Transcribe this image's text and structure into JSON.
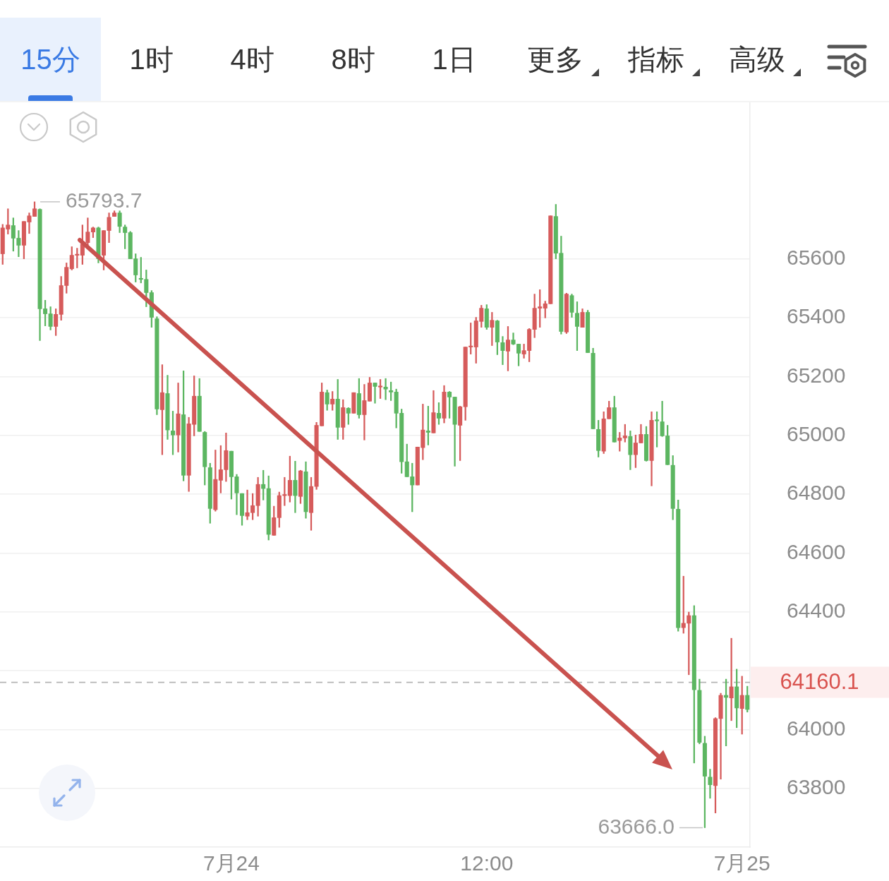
{
  "chart_data": {
    "type": "candlestick",
    "categories": [
      null,
      null,
      null,
      null,
      null,
      null,
      null,
      null,
      null,
      null,
      null,
      null,
      null,
      null,
      null,
      null,
      null,
      null,
      null,
      null,
      null,
      null,
      null,
      null,
      null,
      null,
      null,
      null,
      null,
      null,
      null,
      null,
      null,
      null,
      null,
      null,
      null,
      null,
      null,
      null,
      null,
      null,
      null,
      "7月24",
      null,
      null,
      null,
      null,
      null,
      null,
      null,
      null,
      null,
      null,
      null,
      null,
      null,
      null,
      null,
      null,
      null,
      null,
      null,
      null,
      null,
      null,
      null,
      null,
      null,
      null,
      null,
      null,
      null,
      null,
      null,
      null,
      null,
      null,
      null,
      null,
      null,
      null,
      null,
      null,
      null,
      null,
      null,
      null,
      null,
      null,
      null,
      "12:00",
      null,
      null,
      null,
      null,
      null,
      null,
      null,
      null,
      null,
      null,
      null,
      null,
      null,
      null,
      null,
      null,
      null,
      null,
      null,
      null,
      null,
      null,
      null,
      null,
      null,
      null,
      null,
      null,
      null,
      null,
      null,
      null,
      null,
      null,
      null,
      null,
      null,
      null,
      null,
      null,
      null,
      null,
      null,
      null,
      null,
      null,
      null,
      "7月25",
      null
    ],
    "ohlc": [
      [
        65617,
        65717,
        65581,
        65705
      ],
      [
        65701,
        65770,
        65684,
        65715
      ],
      [
        65713,
        65739,
        65626,
        65670
      ],
      [
        65670,
        65696,
        65607,
        65646
      ],
      [
        65646,
        65727,
        65600,
        65727
      ],
      [
        65725,
        65756,
        65686,
        65746
      ],
      [
        65744,
        65793.7,
        65744,
        65770
      ],
      [
        65768,
        65770,
        65322,
        65430
      ],
      [
        65430,
        65459,
        65372,
        65413
      ],
      [
        65413,
        65437,
        65358,
        65370
      ],
      [
        65370,
        65430,
        65339,
        65411
      ],
      [
        65411,
        65540,
        65391,
        65509
      ],
      [
        65509,
        65586,
        65483,
        65571
      ],
      [
        65566,
        65641,
        65562,
        65612
      ],
      [
        65612,
        65636,
        65569,
        65614
      ],
      [
        65612,
        65715,
        65581,
        65650
      ],
      [
        65655,
        65739,
        65641,
        65691
      ],
      [
        65691,
        65708,
        65672,
        65705
      ],
      [
        65705,
        65708,
        65586,
        65600
      ],
      [
        65612,
        65696,
        65562,
        65696
      ],
      [
        65696,
        65756,
        65655,
        65741
      ],
      [
        65744,
        65763,
        65744,
        65756
      ],
      [
        65756,
        65763,
        65689,
        65710
      ],
      [
        65708,
        65715,
        65634,
        65689
      ],
      [
        65689,
        65693,
        65600,
        65600
      ],
      [
        65600,
        65617,
        65521,
        65545
      ],
      [
        65533,
        65605,
        65518,
        65530
      ],
      [
        65530,
        65562,
        65437,
        65485
      ],
      [
        65485,
        65492,
        65367,
        65401
      ],
      [
        65396,
        65403,
        65070,
        65089
      ],
      [
        65087,
        65240,
        64934,
        65145
      ],
      [
        65142,
        65204,
        64986,
        65018
      ],
      [
        65015,
        65082,
        64934,
        65001
      ],
      [
        65001,
        65178,
        64943,
        65073
      ],
      [
        65070,
        65219,
        64845,
        64864
      ],
      [
        64864,
        65061,
        64809,
        65039
      ],
      [
        65037,
        65202,
        64998,
        65133
      ],
      [
        65133,
        65193,
        65013,
        65013
      ],
      [
        65010,
        65013,
        64831,
        64893
      ],
      [
        64890,
        64905,
        64701,
        64751
      ],
      [
        64747,
        64950,
        64742,
        64850
      ],
      [
        64847,
        64965,
        64804,
        64883
      ],
      [
        64883,
        65008,
        64843,
        64948
      ],
      [
        64946,
        64946,
        64783,
        64859
      ],
      [
        64859,
        64867,
        64730,
        64804
      ],
      [
        64802,
        64802,
        64694,
        64727
      ],
      [
        64725,
        64814,
        64713,
        64737
      ],
      [
        64737,
        64802,
        64713,
        64761
      ],
      [
        64761,
        64857,
        64725,
        64833
      ],
      [
        64833,
        64881,
        64780,
        64819
      ],
      [
        64819,
        64862,
        64644,
        64663
      ],
      [
        64660,
        64759,
        64660,
        64720
      ],
      [
        64720,
        64807,
        64687,
        64795
      ],
      [
        64795,
        64857,
        64761,
        64797
      ],
      [
        64795,
        64929,
        64773,
        64847
      ],
      [
        64847,
        64912,
        64737,
        64795
      ],
      [
        64792,
        64881,
        64768,
        64879
      ],
      [
        64876,
        64910,
        64718,
        64740
      ],
      [
        64737,
        64857,
        64677,
        64826
      ],
      [
        64826,
        65044,
        64816,
        65034
      ],
      [
        65032,
        65178,
        65032,
        65147
      ],
      [
        65145,
        65154,
        65085,
        65106
      ],
      [
        65106,
        65149,
        65085,
        65123
      ],
      [
        65123,
        65190,
        64986,
        65027
      ],
      [
        65027,
        65121,
        64986,
        65094
      ],
      [
        65092,
        65094,
        65037,
        65075
      ],
      [
        65075,
        65145,
        65075,
        65145
      ],
      [
        65142,
        65193,
        65058,
        65070
      ],
      [
        65070,
        65173,
        64984,
        65118
      ],
      [
        65116,
        65197,
        65116,
        65178
      ],
      [
        65178,
        65178,
        65109,
        65166
      ],
      [
        65164,
        65190,
        65125,
        65166
      ],
      [
        65164,
        65193,
        65121,
        65157
      ],
      [
        65152,
        65181,
        65118,
        65147
      ],
      [
        65147,
        65157,
        65025,
        65075
      ],
      [
        65075,
        65089,
        64871,
        64910
      ],
      [
        64910,
        64970,
        64859,
        64859
      ],
      [
        64859,
        64905,
        64740,
        64831
      ],
      [
        64831,
        64960,
        64831,
        64960
      ],
      [
        64958,
        65106,
        64917,
        65018
      ],
      [
        65015,
        65099,
        64967,
        65010
      ],
      [
        65008,
        65152,
        65008,
        65077
      ],
      [
        65075,
        65111,
        65037,
        65058
      ],
      [
        65058,
        65169,
        65042,
        65147
      ],
      [
        65147,
        65149,
        65058,
        65130
      ],
      [
        65130,
        65130,
        64895,
        65037
      ],
      [
        65034,
        65099,
        64914,
        65097
      ],
      [
        65097,
        65300,
        65051,
        65300
      ],
      [
        65300,
        65382,
        65276,
        65303
      ],
      [
        65300,
        65401,
        65245,
        65389
      ],
      [
        65387,
        65442,
        65367,
        65432
      ],
      [
        65430,
        65444,
        65360,
        65367
      ],
      [
        65367,
        65418,
        65305,
        65391
      ],
      [
        65389,
        65391,
        65274,
        65317
      ],
      [
        65315,
        65336,
        65240,
        65288
      ],
      [
        65286,
        65370,
        65219,
        65324
      ],
      [
        65324,
        65348,
        65308,
        65310
      ],
      [
        65310,
        65310,
        65236,
        65279
      ],
      [
        65276,
        65310,
        65262,
        65288
      ],
      [
        65288,
        65363,
        65250,
        65360
      ],
      [
        65360,
        65480,
        65332,
        65432
      ],
      [
        65432,
        65495,
        65367,
        65437
      ],
      [
        65432,
        65456,
        65399,
        65447
      ],
      [
        65447,
        65746,
        65447,
        65746
      ],
      [
        65744,
        65785,
        65600,
        65619
      ],
      [
        65619,
        65677,
        65344,
        65353
      ],
      [
        65351,
        65483,
        65346,
        65480
      ],
      [
        65475,
        65480,
        65401,
        65418
      ],
      [
        65415,
        65454,
        65288,
        65370
      ],
      [
        65367,
        65430,
        65367,
        65418
      ],
      [
        65418,
        65425,
        65281,
        65281
      ],
      [
        65279,
        65296,
        65022,
        65022
      ],
      [
        65020,
        65051,
        64926,
        64948
      ],
      [
        64946,
        65080,
        64938,
        65056
      ],
      [
        65056,
        65116,
        65056,
        65094
      ],
      [
        65094,
        65133,
        64977,
        64977
      ],
      [
        64982,
        65010,
        64946,
        64991
      ],
      [
        64991,
        65037,
        64977,
        64998
      ],
      [
        64996,
        65015,
        64883,
        64934
      ],
      [
        64934,
        65001,
        64890,
        64974
      ],
      [
        64974,
        65037,
        64974,
        65003
      ],
      [
        65003,
        65030,
        64912,
        64914
      ],
      [
        64914,
        65080,
        64828,
        65051
      ],
      [
        65051,
        65080,
        64960,
        65049
      ],
      [
        65046,
        65116,
        64996,
        64998
      ],
      [
        64998,
        65034,
        64900,
        64900
      ],
      [
        64898,
        64931,
        64713,
        64751
      ],
      [
        64749,
        64780,
        64334,
        64346
      ],
      [
        64346,
        64521,
        64327,
        64361
      ],
      [
        64361,
        64399,
        64186,
        64387
      ],
      [
        64387,
        64421,
        63886,
        64135
      ],
      [
        64133,
        64171,
        63951,
        63956
      ],
      [
        63953,
        63977,
        63666,
        63841
      ],
      [
        63838,
        63865,
        63766,
        63812
      ],
      [
        63809,
        64040,
        63716,
        64037
      ],
      [
        64037,
        64123,
        63831,
        64116
      ],
      [
        64116,
        64171,
        63944,
        64109
      ],
      [
        64107,
        64310,
        64030,
        64145
      ],
      [
        64145,
        64205,
        64006,
        64073
      ],
      [
        64071,
        64181,
        63984,
        64116
      ],
      [
        64116,
        64147,
        64059,
        64068
      ]
    ],
    "colors": [
      "#d65b5b",
      "#d65b5b",
      "#5cb661",
      "#5cb661",
      "#d65b5b",
      "#d65b5b",
      "#d65b5b",
      "#5cb661",
      "#5cb661",
      "#5cb661",
      "#d65b5b",
      "#d65b5b",
      "#d65b5b",
      "#d65b5b",
      "#d65b5b",
      "#d65b5b",
      "#d65b5b",
      "#d65b5b",
      "#5cb661",
      "#d65b5b",
      "#d65b5b",
      "#d65b5b",
      "#5cb661",
      "#5cb661",
      "#5cb661",
      "#5cb661",
      "#5cb661",
      "#5cb661",
      "#5cb661",
      "#5cb661",
      "#d65b5b",
      "#5cb661",
      "#5cb661",
      "#d65b5b",
      "#5cb661",
      "#d65b5b",
      "#d65b5b",
      "#5cb661",
      "#5cb661",
      "#5cb661",
      "#d65b5b",
      "#d65b5b",
      "#d65b5b",
      "#5cb661",
      "#5cb661",
      "#5cb661",
      "#d65b5b",
      "#d65b5b",
      "#d65b5b",
      "#5cb661",
      "#5cb661",
      "#d65b5b",
      "#d65b5b",
      "#d65b5b",
      "#d65b5b",
      "#5cb661",
      "#d65b5b",
      "#5cb661",
      "#d65b5b",
      "#d65b5b",
      "#d65b5b",
      "#5cb661",
      "#d65b5b",
      "#5cb661",
      "#d65b5b",
      "#5cb661",
      "#d65b5b",
      "#5cb661",
      "#d65b5b",
      "#d65b5b",
      "#5cb661",
      "#d65b5b",
      "#5cb661",
      "#5cb661",
      "#5cb661",
      "#5cb661",
      "#5cb661",
      "#5cb661",
      "#d65b5b",
      "#d65b5b",
      "#5cb661",
      "#d65b5b",
      "#5cb661",
      "#d65b5b",
      "#5cb661",
      "#5cb661",
      "#d65b5b",
      "#d65b5b",
      "#d65b5b",
      "#d65b5b",
      "#d65b5b",
      "#5cb661",
      "#d65b5b",
      "#5cb661",
      "#5cb661",
      "#d65b5b",
      "#5cb661",
      "#5cb661",
      "#d65b5b",
      "#d65b5b",
      "#d65b5b",
      "#d65b5b",
      "#d65b5b",
      "#d65b5b",
      "#5cb661",
      "#5cb661",
      "#d65b5b",
      "#5cb661",
      "#5cb661",
      "#d65b5b",
      "#5cb661",
      "#5cb661",
      "#5cb661",
      "#d65b5b",
      "#d65b5b",
      "#5cb661",
      "#d65b5b",
      "#d65b5b",
      "#5cb661",
      "#d65b5b",
      "#d65b5b",
      "#5cb661",
      "#d65b5b",
      "#5cb661",
      "#5cb661",
      "#5cb661",
      "#5cb661",
      "#5cb661",
      "#d65b5b",
      "#d65b5b",
      "#5cb661",
      "#5cb661",
      "#5cb661",
      "#5cb661",
      "#d65b5b",
      "#d65b5b",
      "#5cb661",
      "#d65b5b",
      "#5cb661",
      "#d65b5b",
      "#5cb661"
    ],
    "ylim": [
      63600,
      66130
    ],
    "yticks": [
      63800,
      64000,
      {
        "value": 64200,
        "label": null
      },
      64400,
      64600,
      64800,
      65000,
      65200,
      65400,
      65600
    ],
    "grid": "y",
    "ref_lines": [
      {
        "axis": "y",
        "value": 64160.1,
        "label": "64160.1",
        "color": "#b4b4b4",
        "line_style": "dashed"
      }
    ],
    "annotations": [
      "15分",
      "1时",
      "4时",
      "8时",
      "1日",
      "更多",
      "指标",
      "高级",
      "65793.7",
      "63666.0"
    ]
  }
}
